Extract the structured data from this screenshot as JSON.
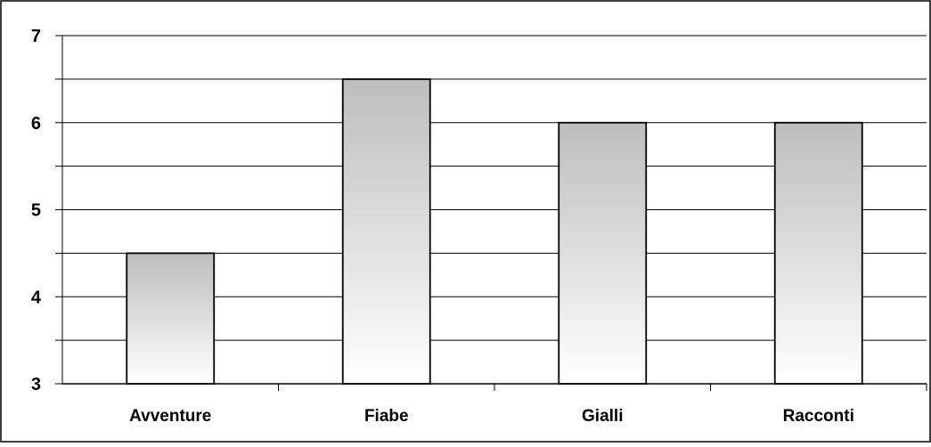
{
  "chart_data": {
    "type": "bar",
    "title": "",
    "xlabel": "",
    "ylabel": "",
    "categories": [
      "Avventure",
      "Fiabe",
      "Gialli",
      "Racconti"
    ],
    "values": [
      4.5,
      6.5,
      6,
      6
    ],
    "ylim": [
      3,
      7
    ],
    "yticks": [
      "3",
      "4",
      "5",
      "6",
      "7"
    ],
    "grid": true,
    "legend": "none",
    "bar_fill_top": "#bdbdbd",
    "bar_fill_bottom": "#ffffff",
    "bar_stroke": "#000000"
  }
}
